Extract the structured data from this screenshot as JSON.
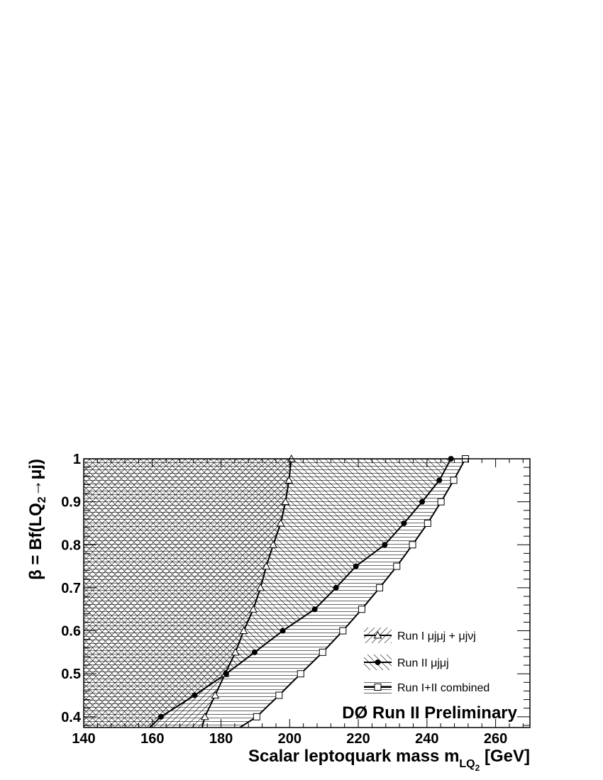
{
  "chart_data": {
    "type": "line",
    "xlabel_main": "Scalar leptoquark mass m",
    "xlabel_sub": "LQ",
    "xlabel_subsub": "2",
    "xlabel_unit": " [GeV]",
    "ylabel_pre": "β = Bf(LQ",
    "ylabel_sub": "2",
    "ylabel_post": "→μj)",
    "xlim": [
      140,
      270
    ],
    "ylim": [
      0.375,
      1.0
    ],
    "xticks": [
      140,
      160,
      180,
      200,
      220,
      240,
      260
    ],
    "yticks": [
      0.4,
      0.5,
      0.6,
      0.7,
      0.8,
      0.9,
      1
    ],
    "xtick_labels": [
      "140",
      "160",
      "180",
      "200",
      "220",
      "240",
      "260"
    ],
    "ytick_labels": [
      "0.4",
      "0.5",
      "0.6",
      "0.7",
      "0.8",
      "0.9",
      "1"
    ],
    "annotation": "DØ Run II Preliminary",
    "grid": false,
    "legend_position": "bottom-right",
    "series": [
      {
        "name": "Run I μjμj + μjνj",
        "marker": "open-triangle",
        "hatch": "diagonal-ascending",
        "points": [
          [
            174.5,
            0.375
          ],
          [
            175.3,
            0.4
          ],
          [
            178.3,
            0.45
          ],
          [
            181.2,
            0.5
          ],
          [
            184.2,
            0.55
          ],
          [
            186.6,
            0.6
          ],
          [
            189.4,
            0.65
          ],
          [
            191.5,
            0.7
          ],
          [
            193.2,
            0.75
          ],
          [
            195.2,
            0.8
          ],
          [
            197.4,
            0.85
          ],
          [
            198.8,
            0.9
          ],
          [
            199.8,
            0.95
          ],
          [
            200.5,
            1.0
          ]
        ]
      },
      {
        "name": "Run II μjμj",
        "marker": "filled-circle",
        "hatch": "diagonal-descending",
        "points": [
          [
            159.2,
            0.375
          ],
          [
            162.5,
            0.4
          ],
          [
            172.3,
            0.45
          ],
          [
            181.5,
            0.5
          ],
          [
            189.8,
            0.55
          ],
          [
            198.0,
            0.6
          ],
          [
            207.3,
            0.65
          ],
          [
            213.5,
            0.7
          ],
          [
            219.3,
            0.75
          ],
          [
            227.7,
            0.8
          ],
          [
            233.3,
            0.85
          ],
          [
            238.6,
            0.9
          ],
          [
            243.6,
            0.95
          ],
          [
            247.0,
            1.0
          ]
        ]
      },
      {
        "name": "Run I+II combined",
        "marker": "open-square",
        "hatch": "horizontal",
        "points": [
          [
            185.5,
            0.375
          ],
          [
            190.4,
            0.4
          ],
          [
            196.9,
            0.45
          ],
          [
            203.2,
            0.5
          ],
          [
            209.6,
            0.55
          ],
          [
            215.5,
            0.6
          ],
          [
            221.0,
            0.65
          ],
          [
            226.2,
            0.7
          ],
          [
            231.2,
            0.75
          ],
          [
            235.8,
            0.8
          ],
          [
            240.2,
            0.85
          ],
          [
            244.1,
            0.9
          ],
          [
            247.8,
            0.95
          ],
          [
            251.2,
            1.0
          ]
        ]
      }
    ]
  }
}
